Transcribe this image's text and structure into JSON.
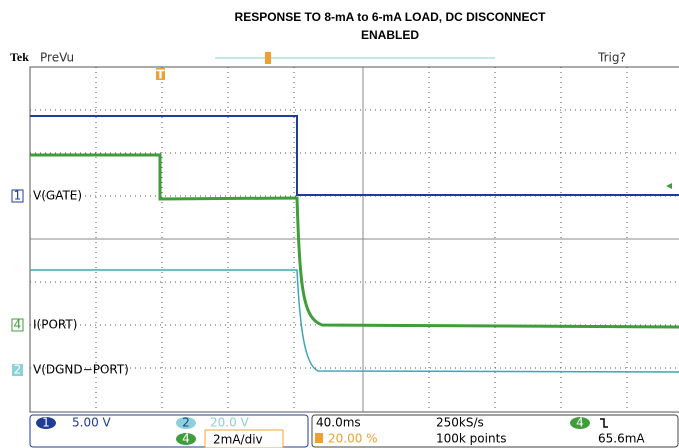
{
  "title": {
    "line1": "RESPONSE TO 8-mA to 6-mA LOAD, DC DISCONNECT",
    "line2": "ENABLED"
  },
  "header": {
    "brand": "Tek",
    "mode": "PreVu",
    "trigger": "Trig?",
    "trigger_marker": "T"
  },
  "channels": [
    {
      "number": "1",
      "label": "V(GATE)"
    },
    {
      "number": "4",
      "label": "I(PORT)"
    },
    {
      "number": "2",
      "label": "V(DGND−PORT)"
    }
  ],
  "status": {
    "ch1": {
      "number": "1",
      "scale": "5.00 V"
    },
    "ch2": {
      "number": "2",
      "scale": "20.0 V"
    },
    "ch4": {
      "number": "4",
      "scale": "2mA/div"
    },
    "timebase": "40.0ms",
    "position": "20.00 %",
    "sample_rate": "250kS/s",
    "record": "100k points",
    "trigger_channel": "4",
    "trigger_level": "65.6mA"
  }
}
